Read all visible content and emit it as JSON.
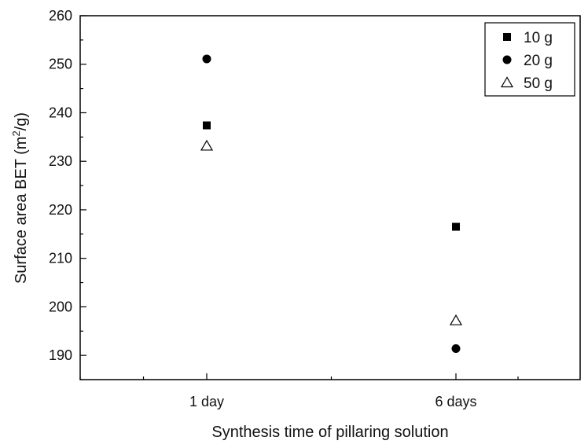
{
  "chart_data": {
    "type": "scatter",
    "title": "",
    "xlabel": "Synthesis time of pillaring solution",
    "ylabel_main": "Surface area BET (m",
    "ylabel_sup": "2",
    "ylabel_end": "/g)",
    "categories": [
      "1 day",
      "6 days"
    ],
    "ylim": [
      185,
      260
    ],
    "yticks": [
      190,
      200,
      210,
      220,
      230,
      240,
      250,
      260
    ],
    "grid": false,
    "legend_position": "top-right",
    "series": [
      {
        "name": "10 g",
        "marker": "filled-square",
        "values": [
          237.4,
          216.5
        ]
      },
      {
        "name": "20 g",
        "marker": "filled-circle",
        "values": [
          251.1,
          191.4
        ]
      },
      {
        "name": "50 g",
        "marker": "open-triangle",
        "values": [
          233.2,
          197.2
        ]
      }
    ]
  }
}
